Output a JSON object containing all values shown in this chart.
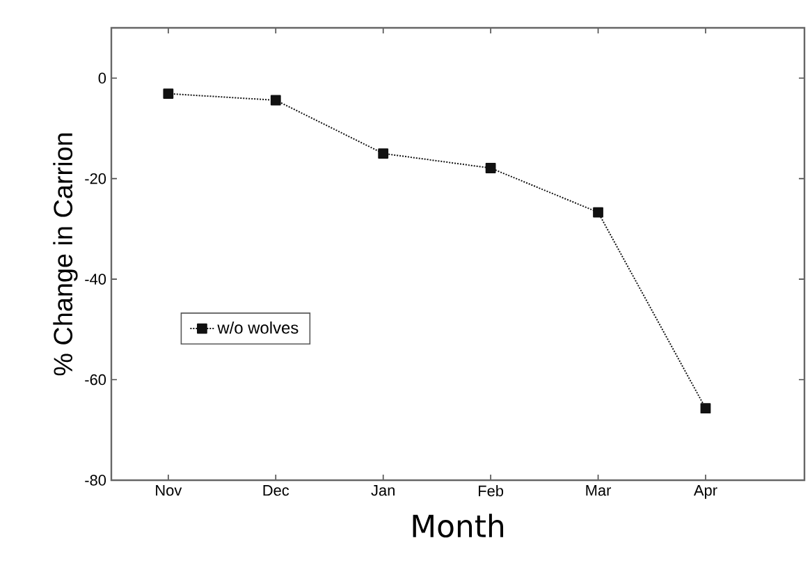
{
  "chart_data": {
    "type": "line",
    "xlabel": "Month",
    "ylabel": "% Change in Carrion",
    "categories": [
      "Nov",
      "Dec",
      "Jan",
      "Feb",
      "Mar",
      "Apr"
    ],
    "series": [
      {
        "name": "w/o wolves",
        "color": "#111111",
        "values": [
          -3.1,
          -4.4,
          -15.0,
          -17.9,
          -26.7,
          -65.7
        ]
      }
    ],
    "ylim": [
      -80,
      10
    ],
    "yticks": [
      -80,
      -60,
      -40,
      -20,
      0
    ],
    "marker": "square",
    "line_style": "dotted",
    "legend": "left",
    "grid": false
  }
}
